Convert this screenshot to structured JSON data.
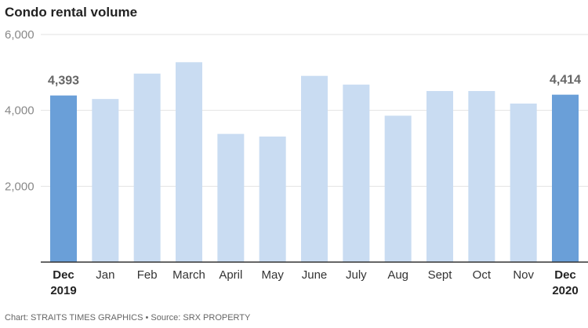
{
  "title": "Condo rental volume",
  "source": "Chart: STRAITS TIMES GRAPHICS • Source: SRX PROPERTY",
  "colors": {
    "highlight": "#6a9fd8",
    "normal": "#c9dcf2",
    "axis": "#333333",
    "grid": "#e2e2e2"
  },
  "chart_data": {
    "type": "bar",
    "title": "Condo rental volume",
    "categories": [
      "Dec 2019",
      "Jan",
      "Feb",
      "March",
      "April",
      "May",
      "June",
      "July",
      "Aug",
      "Sept",
      "Oct",
      "Nov",
      "Dec 2020"
    ],
    "category_lines": [
      [
        "Dec",
        "2019"
      ],
      [
        "Jan"
      ],
      [
        "Feb"
      ],
      [
        "March"
      ],
      [
        "April"
      ],
      [
        "May"
      ],
      [
        "June"
      ],
      [
        "July"
      ],
      [
        "Aug"
      ],
      [
        "Sept"
      ],
      [
        "Oct"
      ],
      [
        "Nov"
      ],
      [
        "Dec",
        "2020"
      ]
    ],
    "values": [
      4393,
      4300,
      4970,
      5270,
      3380,
      3310,
      4910,
      4680,
      3860,
      4510,
      4510,
      4180,
      4414
    ],
    "highlighted": [
      true,
      false,
      false,
      false,
      false,
      false,
      false,
      false,
      false,
      false,
      false,
      false,
      true
    ],
    "data_labels": [
      "4,393",
      "",
      "",
      "",
      "",
      "",
      "",
      "",
      "",
      "",
      "",
      "",
      "4,414"
    ],
    "y_ticks": [
      2000,
      4000,
      6000
    ],
    "y_tick_labels": [
      "2,000",
      "4,000",
      "6,000"
    ],
    "ylim": [
      0,
      6000
    ],
    "grid": true
  }
}
